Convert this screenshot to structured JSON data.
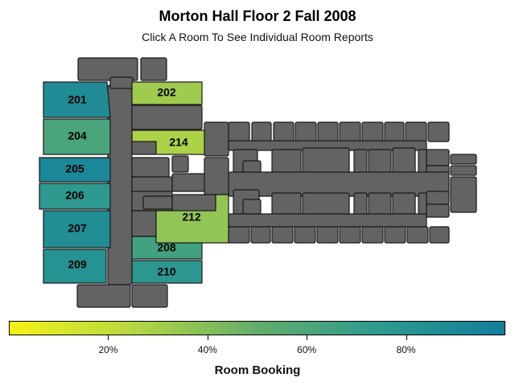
{
  "title": "Morton Hall Floor 2 Fall 2008",
  "subtitle": "Click A Room To See Individual Room Reports",
  "legend": {
    "title": "Room Booking",
    "colors": [
      "#f5f315",
      "#b6d743",
      "#63ad6b",
      "#2e9a8e",
      "#137e9c"
    ],
    "ticks": [
      {
        "value": 0.2,
        "label": "20%"
      },
      {
        "value": 0.4,
        "label": "40%"
      },
      {
        "value": 0.6,
        "label": "60%"
      },
      {
        "value": 0.8,
        "label": "80%"
      }
    ]
  },
  "neutral_color": "#636363",
  "rooms": [
    {
      "id": "201",
      "booking": 0.88
    },
    {
      "id": "202",
      "booking": 0.32
    },
    {
      "id": "204",
      "booking": 0.62
    },
    {
      "id": "205",
      "booking": 0.92
    },
    {
      "id": "206",
      "booking": 0.76
    },
    {
      "id": "207",
      "booking": 0.87
    },
    {
      "id": "208",
      "booking": 0.66
    },
    {
      "id": "209",
      "booking": 0.82
    },
    {
      "id": "210",
      "booking": 0.78
    },
    {
      "id": "212",
      "booking": 0.36
    },
    {
      "id": "214",
      "booking": 0.28
    }
  ]
}
